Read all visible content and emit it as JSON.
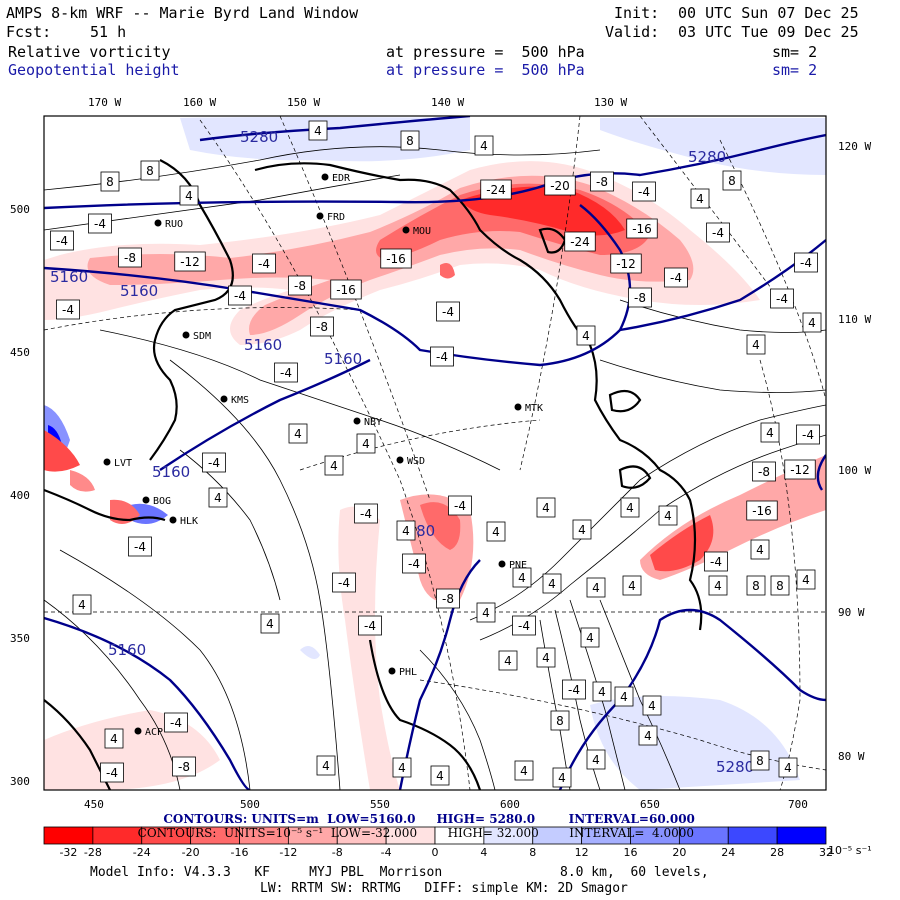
{
  "header": {
    "title": "AMPS 8-km WRF -- Marie Byrd Land Window",
    "init_label": "Init:",
    "init_value": "00 UTC Sun 07 Dec 25",
    "fcst_label": "Fcst:",
    "fcst_value": "51 h",
    "valid_label": "Valid:",
    "valid_value": "03 UTC Tue 09 Dec 25",
    "field1": "Relative vorticity",
    "field1_level": "at pressure =  500 hPa",
    "field1_sm": "sm= 2",
    "field2": "Geopotential height",
    "field2_level": "at pressure =  500 hPa",
    "field2_sm": "sm= 2"
  },
  "colors": {
    "neg_strong": "#ff0000",
    "neg_mid": "#ff7070",
    "neg_light": "#ffd0d0",
    "pos_light": "#d8ddff",
    "pos_strong": "#0000ff",
    "height_contour": "#00008b"
  },
  "top_lon_labels": [
    "170 W",
    "160 W",
    "150 W",
    "140 W",
    "130 W"
  ],
  "right_lon_labels": [
    "120 W",
    "110 W",
    "100 W",
    "90 W",
    "80 W"
  ],
  "left_y_labels": [
    "500",
    "450",
    "400",
    "350",
    "300"
  ],
  "bottom_x_labels": [
    "450",
    "500",
    "550",
    "600",
    "650",
    "700"
  ],
  "stations": [
    "RUO",
    "FRD",
    "MOU",
    "EDR",
    "SDM",
    "KMS",
    "NBY",
    "MTK",
    "LVT",
    "BOG",
    "HLK",
    "WSD",
    "PHL",
    "PNE",
    "ACP"
  ],
  "height_labels": [
    "5280",
    "5280",
    "5160",
    "5160",
    "5160",
    "5160",
    "5160",
    "5160",
    "5280",
    "5280"
  ],
  "vort_labels": [
    "4",
    "8",
    "-4",
    "-8",
    "-12",
    "-16",
    "-20",
    "-24",
    "4",
    "-4"
  ],
  "contour_info": {
    "line1_prefix": "CONTOURS: UNITS=m  LOW=",
    "line1_low": "5160.0",
    "line1_high_label": "HIGH=",
    "line1_high": "5280.0",
    "line1_int_label": "INTERVAL=",
    "line1_int": "60.000",
    "line2_prefix": "CONTOURS:  UNITS=10⁻⁵ s⁻¹  LOW=",
    "line2_low": "-32.000",
    "line2_high_label": "HIGH=",
    "line2_high": "32.000",
    "line2_int_label": "INTERVAL=",
    "line2_int": "4.0000"
  },
  "colorbar": {
    "labels": [
      "-32",
      "-28",
      "-24",
      "-20",
      "-16",
      "-12",
      "-8",
      "-4",
      "0",
      "4",
      "8",
      "12",
      "16",
      "20",
      "24",
      "28",
      "32"
    ],
    "units": "10⁻⁵ s⁻¹",
    "colors": [
      "#ff0000",
      "#ff2a2a",
      "#ff4a4a",
      "#ff6a6a",
      "#ff8a8a",
      "#ffa8a8",
      "#ffc4c4",
      "#ffe2e2",
      "#ffffff",
      "#ffffff",
      "#e2e6ff",
      "#c4ccff",
      "#a6b0ff",
      "#8892ff",
      "#6a74ff",
      "#3c48ff",
      "#0000ff"
    ]
  },
  "footer": {
    "line1_left": "Model Info: V4.3.3   KF     MYJ PBL  Morrison",
    "line1_right": "8.0 km,  60 levels,",
    "line2": "LW: RRTM SW: RRTMG   DIFF: simple KM: 2D Smagor"
  }
}
